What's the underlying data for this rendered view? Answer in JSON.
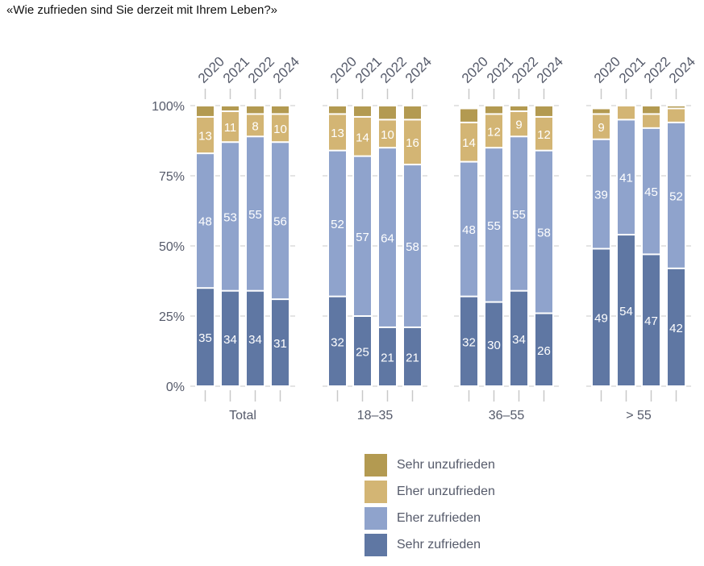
{
  "title": "«Wie zufrieden sind Sie derzeit mit Ihrem Leben?»",
  "chart_data": {
    "type": "bar",
    "stacked": true,
    "title": "«Wie zufrieden sind Sie derzeit mit Ihrem Leben?»",
    "xlabel": "",
    "ylabel": "",
    "ylim": [
      0,
      100
    ],
    "yticks": [
      "0%",
      "25%",
      "50%",
      "75%",
      "100%"
    ],
    "ytick_values": [
      0,
      25,
      50,
      75,
      100
    ],
    "years": [
      "2020",
      "2021",
      "2022",
      "2024"
    ],
    "groups": [
      {
        "label": "Total",
        "bars": [
          {
            "year": "2020",
            "values": [
              35,
              48,
              13,
              4
            ]
          },
          {
            "year": "2021",
            "values": [
              34,
              53,
              11,
              2
            ]
          },
          {
            "year": "2022",
            "values": [
              34,
              55,
              8,
              3
            ]
          },
          {
            "year": "2024",
            "values": [
              31,
              56,
              10,
              3
            ]
          }
        ]
      },
      {
        "label": "18–35",
        "bars": [
          {
            "year": "2020",
            "values": [
              32,
              52,
              13,
              3
            ]
          },
          {
            "year": "2021",
            "values": [
              25,
              57,
              14,
              4
            ]
          },
          {
            "year": "2022",
            "values": [
              21,
              64,
              10,
              5
            ]
          },
          {
            "year": "2024",
            "values": [
              21,
              58,
              16,
              5
            ]
          }
        ]
      },
      {
        "label": "36–55",
        "bars": [
          {
            "year": "2020",
            "values": [
              32,
              48,
              14,
              5
            ]
          },
          {
            "year": "2021",
            "values": [
              30,
              55,
              12,
              3
            ]
          },
          {
            "year": "2022",
            "values": [
              34,
              55,
              9,
              2
            ]
          },
          {
            "year": "2024",
            "values": [
              26,
              58,
              12,
              4
            ]
          }
        ]
      },
      {
        "label": "> 55",
        "bars": [
          {
            "year": "2020",
            "values": [
              49,
              39,
              9,
              2
            ]
          },
          {
            "year": "2021",
            "values": [
              54,
              41,
              5,
              0
            ]
          },
          {
            "year": "2022",
            "values": [
              47,
              45,
              5,
              3
            ]
          },
          {
            "year": "2024",
            "values": [
              42,
              52,
              5,
              1
            ]
          }
        ]
      }
    ],
    "series": [
      {
        "name": "Sehr zufrieden",
        "color": "#5f77a3"
      },
      {
        "name": "Eher zufrieden",
        "color": "#8fa3cc"
      },
      {
        "name": "Eher unzufrieden",
        "color": "#d3b574"
      },
      {
        "name": "Sehr unzufrieden",
        "color": "#b39a51"
      }
    ],
    "labeled_min": 8,
    "legend": "bottom-center",
    "grid": false
  },
  "legend": {
    "items": [
      {
        "label": "Sehr unzufrieden",
        "color": "#b39a51"
      },
      {
        "label": "Eher unzufrieden",
        "color": "#d3b574"
      },
      {
        "label": "Eher zufrieden",
        "color": "#8fa3cc"
      },
      {
        "label": "Sehr zufrieden",
        "color": "#5f77a3"
      }
    ]
  }
}
